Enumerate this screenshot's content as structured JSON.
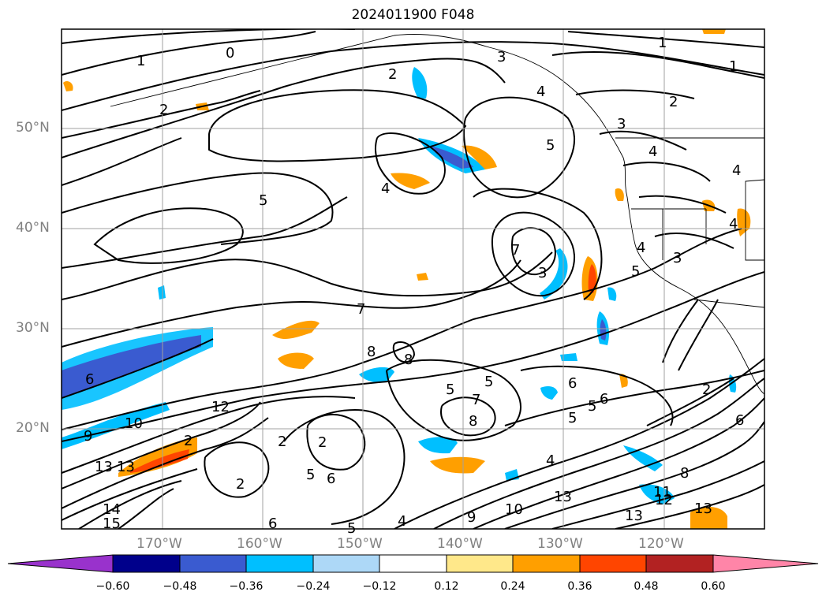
{
  "title": "2024011900 F048",
  "lat_labels": [
    "50°N",
    "40°N",
    "30°N",
    "20°N"
  ],
  "lon_labels": [
    "170°W",
    "160°W",
    "150°W",
    "140°W",
    "130°W",
    "120°W"
  ],
  "colorbar": {
    "labels": [
      "−0.60",
      "−0.48",
      "−0.36",
      "−0.24",
      "−0.12",
      "0.12",
      "0.24",
      "0.36",
      "0.48",
      "0.60"
    ],
    "colors": [
      "#9932cc",
      "#00008b",
      "#3a5bd0",
      "#00bfff",
      "#add8f7",
      "#ffffff",
      "#ffe88a",
      "#ff9f00",
      "#ff4500",
      "#b22222",
      "#ff85a8"
    ]
  },
  "contour_labels": [
    "1",
    "1",
    "1",
    "2",
    "0",
    "2",
    "3",
    "2",
    "4",
    "4",
    "3",
    "5",
    "4",
    "4",
    "5",
    "4",
    "5",
    "7",
    "3",
    "4",
    "3",
    "7",
    "8",
    "8",
    "6",
    "5",
    "12",
    "10",
    "9",
    "13",
    "13",
    "14",
    "15",
    "2",
    "2",
    "2",
    "2",
    "5",
    "6",
    "6",
    "7",
    "8",
    "5",
    "5",
    "6",
    "5",
    "6",
    "4",
    "5",
    "9",
    "10",
    "13",
    "13",
    "8",
    "11",
    "12",
    "13",
    "2",
    "6",
    "4"
  ]
}
